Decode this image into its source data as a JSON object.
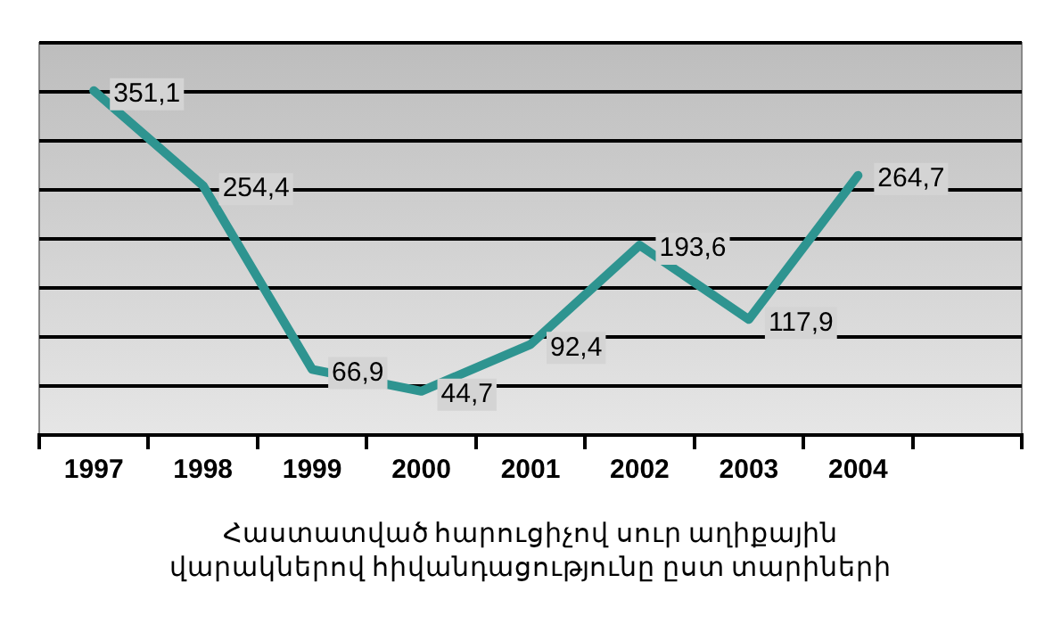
{
  "chart_data": {
    "type": "line",
    "categories": [
      "1997",
      "1998",
      "1999",
      "2000",
      "2001",
      "2002",
      "2003",
      "2004",
      null
    ],
    "series": [
      {
        "color": "#2e9490",
        "values": [
          351.1,
          254.4,
          66.9,
          44.7,
          92.4,
          193.6,
          117.9,
          264.7,
          null
        ],
        "value_labels": [
          "351,1",
          "254,4",
          "66,9",
          "44,7",
          "92,4",
          "193,6",
          "117,9",
          "264,7",
          null
        ]
      }
    ],
    "ylim": [
      0,
      400
    ],
    "yticks": [
      {
        "value": 0,
        "label": null
      },
      {
        "value": 50,
        "label": null
      },
      {
        "value": 100,
        "label": null
      },
      {
        "value": 150,
        "label": null
      },
      {
        "value": 200,
        "label": null
      },
      {
        "value": 250,
        "label": null
      },
      {
        "value": 300,
        "label": null
      },
      {
        "value": 350,
        "label": null
      },
      {
        "value": 400,
        "label": null
      }
    ],
    "grid": "y",
    "tick_labels": "x",
    "marker": "none",
    "line_style": "solid",
    "legend": false,
    "annotations": [
      "Հաստատված հարուցիչով սուր աղիքային վարակներով հիվանդացությունը  ըստ տարիների"
    ]
  }
}
